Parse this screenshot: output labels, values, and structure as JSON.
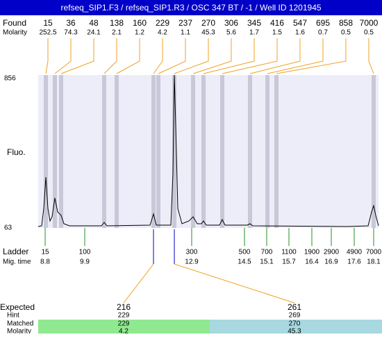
{
  "title": "refseq_SIP1.F3 / refseq_SIP1.R3 / OSC 347 BT / -1 / Well ID 1201945",
  "found": {
    "label": "Found",
    "molarity_label": "Molarity",
    "peaks": [
      {
        "size": "15",
        "molarity": "252.5"
      },
      {
        "size": "36",
        "molarity": "74.3"
      },
      {
        "size": "48",
        "molarity": "24.1"
      },
      {
        "size": "138",
        "molarity": "2.1"
      },
      {
        "size": "160",
        "molarity": "1.2"
      },
      {
        "size": "229",
        "molarity": "4.2"
      },
      {
        "size": "237",
        "molarity": "1.1"
      },
      {
        "size": "270",
        "molarity": "45.3"
      },
      {
        "size": "306",
        "molarity": "5.6"
      },
      {
        "size": "345",
        "molarity": "1.7"
      },
      {
        "size": "416",
        "molarity": "1.5"
      },
      {
        "size": "547",
        "molarity": "1.6"
      },
      {
        "size": "695",
        "molarity": "0.7"
      },
      {
        "size": "858",
        "molarity": "0.5"
      },
      {
        "size": "7000",
        "molarity": "0.5"
      }
    ]
  },
  "y_axis": {
    "label": "Fluo.",
    "max": "856",
    "min": "63"
  },
  "ladder": {
    "label": "Ladder",
    "mig_label": "Mig. time",
    "markers": [
      {
        "size": "15",
        "time": "8.8"
      },
      {
        "size": "100",
        "time": "9.9"
      },
      {
        "size": "300",
        "time": "12.9"
      },
      {
        "size": "500",
        "time": "14.5"
      },
      {
        "size": "700",
        "time": "15.1"
      },
      {
        "size": "1100",
        "time": "15.7"
      },
      {
        "size": "1900",
        "time": "16.4"
      },
      {
        "size": "2900",
        "time": "16.9"
      },
      {
        "size": "4900",
        "time": "17.6"
      },
      {
        "size": "7000",
        "time": "18.1"
      }
    ]
  },
  "expected": {
    "label": "Expected",
    "hint_label": "Hint",
    "matched_label": "Matched",
    "molarity_label": "Molarity",
    "items": [
      {
        "expected": "216",
        "hint": "229",
        "matched": "229",
        "molarity": "4.2"
      },
      {
        "expected": "261",
        "hint": "269",
        "matched": "270",
        "molarity": "45.3"
      }
    ]
  }
}
